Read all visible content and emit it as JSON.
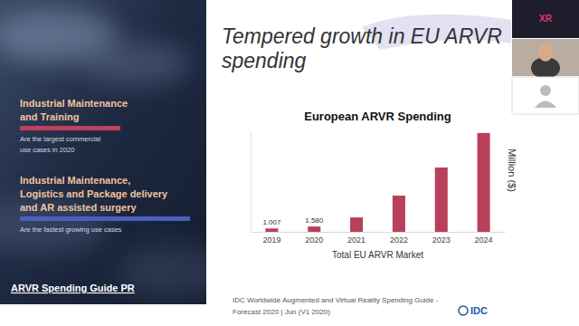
{
  "chart_data": {
    "type": "bar",
    "title": "European ARVR Spending",
    "categories": [
      "2019",
      "2020",
      "2021",
      "2022",
      "2023",
      "2024"
    ],
    "values": [
      1007,
      1580,
      4300,
      10800,
      19200,
      29500
    ],
    "value_labels": [
      "1.007",
      "1.580",
      null,
      null,
      null,
      null
    ],
    "data_labels": true,
    "color": "#b8405a",
    "x_label": "Total EU ARVR Market",
    "y_label": "Million ($)",
    "ylim": [
      0,
      30000
    ],
    "yticks": [],
    "tick_labels": "x",
    "grid": false
  },
  "slide": {
    "title": [
      "Tempered growth in EU ARVR",
      "spending"
    ],
    "highlights": [
      {
        "heading": [
          "Industrial Maintenance",
          "and Training"
        ],
        "text": [
          "Are the largest commercial",
          "use cases in 2020"
        ]
      },
      {
        "heading": [
          "Industrial Maintenance,",
          "Logistics and Package delivery",
          "and AR assisted surgery"
        ],
        "text": [
          "Are the fastest growing use cases"
        ]
      }
    ],
    "link": "ARVR Spending Guide PR",
    "source": [
      "IDC Worldwide Augmented and Virtual Reality Spending Guide -",
      "Forecast 2020 | Jun (V1 2020)"
    ],
    "logo": "IDC"
  },
  "participants": {
    "badge": "XR"
  }
}
